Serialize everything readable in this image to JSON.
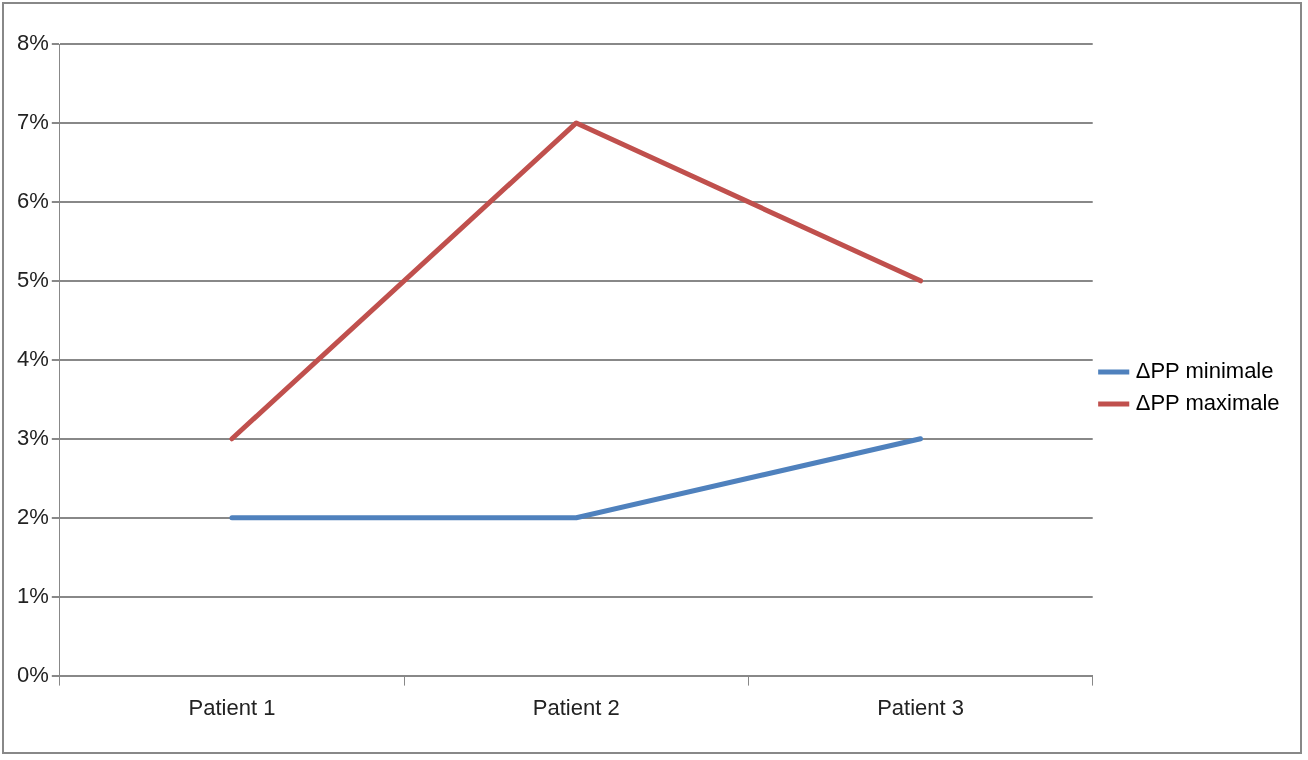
{
  "chart_data": {
    "type": "line",
    "categories": [
      "Patient 1",
      "Patient 2",
      "Patient 3"
    ],
    "series": [
      {
        "name": "ΔPP minimale",
        "color": "#4f81bd",
        "values": [
          2,
          2,
          3
        ]
      },
      {
        "name": "ΔPP maximale",
        "color": "#c0504d",
        "values": [
          3,
          7,
          5
        ]
      }
    ],
    "ylim": [
      0,
      8
    ],
    "yticks": [
      {
        "value": 0,
        "label": "0%"
      },
      {
        "value": 1,
        "label": "1%"
      },
      {
        "value": 2,
        "label": "2%"
      },
      {
        "value": 3,
        "label": "3%"
      },
      {
        "value": 4,
        "label": "4%"
      },
      {
        "value": 5,
        "label": "5%"
      },
      {
        "value": 6,
        "label": "6%"
      },
      {
        "value": 7,
        "label": "7%"
      },
      {
        "value": 8,
        "label": "8%"
      }
    ],
    "grid": "y",
    "legend": "right",
    "marker": "none",
    "line_style": "solid"
  }
}
